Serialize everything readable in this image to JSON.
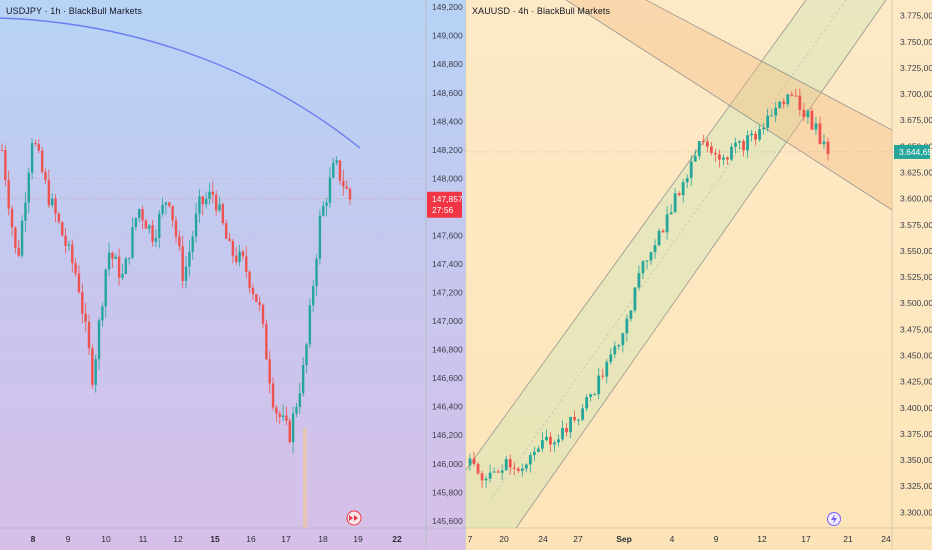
{
  "left_panel": {
    "title": "USDJPY · 1h · BlackBull Markets",
    "price_badge": "147,857",
    "countdown": "27:56",
    "price_labels": [
      "149,200",
      "149,000",
      "148,800",
      "148,600",
      "148,400",
      "148,200",
      "148,000",
      "147,600",
      "147,400",
      "147,200",
      "147,000",
      "146,800",
      "146,600",
      "146,400",
      "146,200",
      "146,000",
      "145,800",
      "145,600"
    ],
    "date_labels": [
      "8",
      "9",
      "10",
      "11",
      "12",
      "15",
      "16",
      "17",
      "18",
      "19",
      "22"
    ]
  },
  "right_panel": {
    "title": "XAUUSD · 4h · BlackBull Markets",
    "price_badge": "3.644,65",
    "price_labels": [
      "3.775,00",
      "3.750,00",
      "3.725,00",
      "3.700,00",
      "3.675,00",
      "3.650,00",
      "3.625,00",
      "3.600,00",
      "3.575,00",
      "3.550,00",
      "3.525,00",
      "3.500,00",
      "3.475,00",
      "3.450,00",
      "3.425,00",
      "3.400,00",
      "3.375,00",
      "3.350,00",
      "3.325,00",
      "3.300,00"
    ],
    "date_labels": [
      "7",
      "20",
      "24",
      "27",
      "Sep",
      "4",
      "9",
      "12",
      "17",
      "21",
      "24"
    ]
  },
  "chart_data": [
    {
      "type": "candlestick",
      "symbol": "USDJPY",
      "timeframe": "1h",
      "broker": "BlackBull Markets",
      "last_price": 147.857,
      "ylim": [
        145.55,
        149.25
      ],
      "x_ticks": [
        "8",
        "9",
        "10",
        "11",
        "12",
        "15",
        "16",
        "17",
        "18",
        "19",
        "22"
      ],
      "close_path": [
        148.2,
        147.4,
        148.3,
        147.9,
        147.6,
        147.3,
        146.6,
        147.5,
        147.3,
        147.8,
        147.6,
        147.9,
        147.3,
        147.8,
        147.9,
        147.5,
        147.4,
        147.1,
        146.4,
        146.2,
        146.7,
        147.7,
        148.1,
        147.857
      ],
      "colors": {
        "up": "#26a69a",
        "down": "#ef5350"
      }
    },
    {
      "type": "candlestick",
      "symbol": "XAUUSD",
      "timeframe": "4h",
      "broker": "BlackBull Markets",
      "last_price": 3644.65,
      "ylim": [
        3285,
        3790
      ],
      "x_ticks": [
        "7",
        "20",
        "24",
        "27",
        "Sep",
        "4",
        "9",
        "12",
        "17",
        "21",
        "24"
      ],
      "close_path": [
        3345,
        3330,
        3350,
        3340,
        3365,
        3375,
        3390,
        3420,
        3450,
        3500,
        3550,
        3580,
        3620,
        3660,
        3640,
        3650,
        3660,
        3685,
        3700,
        3675,
        3644.65
      ],
      "colors": {
        "up": "#26a69a",
        "down": "#ef5350"
      }
    }
  ]
}
